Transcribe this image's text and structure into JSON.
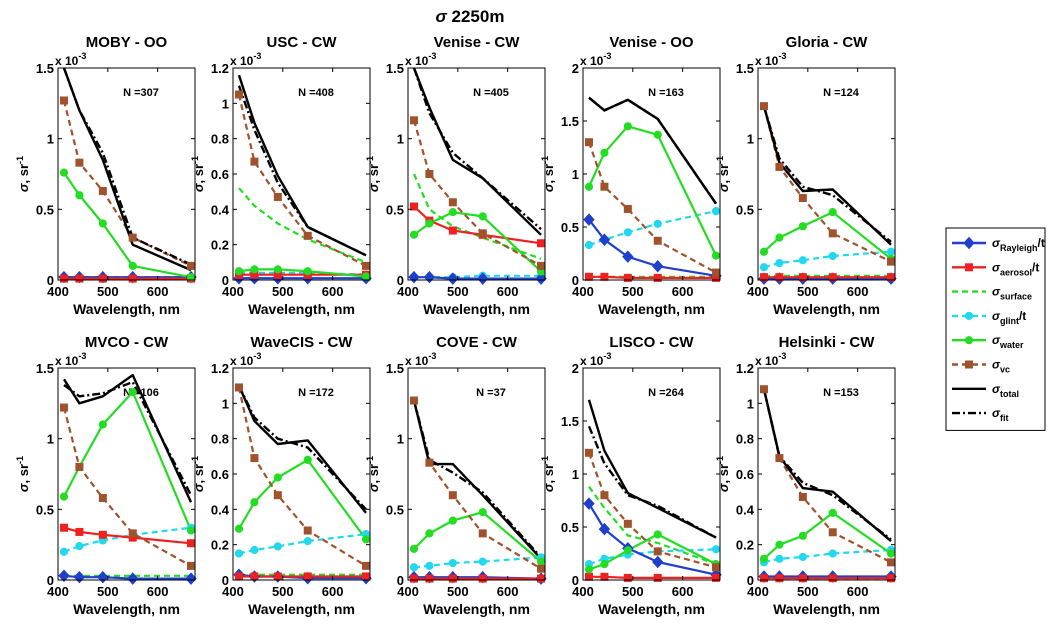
{
  "chart_data": {
    "type": "line",
    "title_sigma": "σ",
    "title_rest": " 2250m",
    "xlabel": "Wavelength, nm",
    "ylabel_sigma": "σ",
    "ylabel_unit": ", sr",
    "ylabel_exp": "-1",
    "xlim": [
      400,
      675
    ],
    "xticks": [
      400,
      500,
      600
    ],
    "x": [
      412,
      443,
      490,
      550,
      667
    ],
    "exponent_base": "x 10",
    "exponent_power": "-3",
    "series_meta": [
      {
        "key": "rayleigh",
        "sym": "σ",
        "sub": "Rayleigh",
        "suffix": "/t",
        "color": "#1f3fcc",
        "dash": "",
        "marker": "diamond"
      },
      {
        "key": "aerosol",
        "sym": "σ",
        "sub": "aerosol",
        "suffix": "/t",
        "color": "#ee2020",
        "dash": "",
        "marker": "square"
      },
      {
        "key": "surface",
        "sym": "σ",
        "sub": "surface",
        "suffix": "",
        "color": "#22dd22",
        "dash": "6,4",
        "marker": "none"
      },
      {
        "key": "glint",
        "sym": "σ",
        "sub": "glint",
        "suffix": "/t",
        "color": "#22d8ee",
        "dash": "6,4",
        "marker": "circle"
      },
      {
        "key": "water",
        "sym": "σ",
        "sub": "water",
        "suffix": "",
        "color": "#22dd22",
        "dash": "",
        "marker": "circle"
      },
      {
        "key": "vc",
        "sym": "σ",
        "sub": "vc",
        "suffix": "",
        "color": "#a0522d",
        "dash": "6,4",
        "marker": "square"
      },
      {
        "key": "total",
        "sym": "σ",
        "sub": "total",
        "suffix": "",
        "color": "#000000",
        "dash": "",
        "marker": "none"
      },
      {
        "key": "fit",
        "sym": "σ",
        "sub": "fit",
        "suffix": "",
        "color": "#000000",
        "dash": "8,3,2,3",
        "marker": "none"
      }
    ],
    "panels": [
      {
        "title": "MOBY - OO",
        "n_label": "N =307",
        "ylim": [
          0,
          1.5
        ],
        "yticks": [
          "0",
          "0.5",
          "1",
          "1.5"
        ],
        "series": {
          "rayleigh": [
            0.02,
            0.02,
            0.02,
            0.02,
            0.02
          ],
          "aerosol": [
            0.01,
            0.01,
            0.01,
            0.01,
            0.01
          ],
          "surface": [
            0.02,
            0.02,
            0.02,
            0.02,
            0.02
          ],
          "glint": [
            0.02,
            0.02,
            0.02,
            0.02,
            0.02
          ],
          "water": [
            0.76,
            0.6,
            0.4,
            0.1,
            0.02
          ],
          "vc": [
            1.27,
            0.83,
            0.63,
            0.3,
            0.1
          ],
          "total": [
            1.5,
            1.2,
            0.85,
            0.25,
            0.07
          ],
          "fit": [
            1.5,
            1.2,
            0.9,
            0.3,
            0.11
          ]
        }
      },
      {
        "title": "USC - CW",
        "n_label": "N =408",
        "ylim": [
          0,
          1.2
        ],
        "yticks": [
          "0",
          "0.2",
          "0.4",
          "0.6",
          "0.8",
          "1",
          "1.2"
        ],
        "series": {
          "rayleigh": [
            0.01,
            0.01,
            0.01,
            0.01,
            0.01
          ],
          "aerosol": [
            0.03,
            0.03,
            0.03,
            0.03,
            0.03
          ],
          "surface": [
            0.52,
            0.42,
            0.32,
            0.23,
            0.1
          ],
          "glint": [
            0.04,
            0.04,
            0.04,
            0.04,
            0.03
          ],
          "water": [
            0.05,
            0.06,
            0.06,
            0.05,
            0.02
          ],
          "vc": [
            1.05,
            0.67,
            0.47,
            0.25,
            0.08
          ],
          "total": [
            1.16,
            0.89,
            0.59,
            0.3,
            0.14
          ],
          "fit": [
            1.1,
            0.85,
            0.55,
            0.3,
            0.14
          ]
        }
      },
      {
        "title": "Venise - CW",
        "n_label": "N =405",
        "ylim": [
          0,
          1.5
        ],
        "yticks": [
          "0",
          "0.5",
          "1",
          "1.5"
        ],
        "series": {
          "rayleigh": [
            0.02,
            0.02,
            0.01,
            0.01,
            0.01
          ],
          "aerosol": [
            0.52,
            0.42,
            0.35,
            0.32,
            0.26
          ],
          "surface": [
            0.75,
            0.5,
            0.38,
            0.3,
            0.15
          ],
          "glint": [
            0.02,
            0.02,
            0.02,
            0.03,
            0.03
          ],
          "water": [
            0.32,
            0.4,
            0.48,
            0.45,
            0.06
          ],
          "vc": [
            1.13,
            0.75,
            0.55,
            0.33,
            0.1
          ],
          "total": [
            1.5,
            1.22,
            0.85,
            0.72,
            0.32
          ],
          "fit": [
            1.5,
            1.18,
            0.9,
            0.72,
            0.36
          ]
        }
      },
      {
        "title": "Venise - OO",
        "n_label": "N =163",
        "ylim": [
          0,
          2
        ],
        "yticks": [
          "0",
          "0.5",
          "1",
          "1.5",
          "2"
        ],
        "series": {
          "rayleigh": [
            0.57,
            0.38,
            0.22,
            0.13,
            0.04
          ],
          "aerosol": [
            0.03,
            0.03,
            0.02,
            0.02,
            0.02
          ],
          "surface": [
            0.03,
            0.03,
            0.03,
            0.03,
            0.03
          ],
          "glint": [
            0.33,
            0.38,
            0.45,
            0.53,
            0.65
          ],
          "water": [
            0.88,
            1.2,
            1.45,
            1.37,
            0.23
          ],
          "vc": [
            1.3,
            0.88,
            0.67,
            0.37,
            0.07
          ],
          "total": [
            1.72,
            1.6,
            1.7,
            1.52,
            0.72
          ],
          "fit": [
            1.72,
            1.6,
            1.7,
            1.52,
            0.72
          ]
        }
      },
      {
        "title": "Gloria - CW",
        "n_label": "N =124",
        "ylim": [
          0,
          1.5
        ],
        "yticks": [
          "0",
          "0.5",
          "1",
          "1.5"
        ],
        "series": {
          "rayleigh": [
            0.01,
            0.01,
            0.01,
            0.01,
            0.01
          ],
          "aerosol": [
            0.02,
            0.02,
            0.02,
            0.02,
            0.02
          ],
          "surface": [
            0.03,
            0.03,
            0.03,
            0.03,
            0.03
          ],
          "glint": [
            0.09,
            0.12,
            0.14,
            0.17,
            0.2
          ],
          "water": [
            0.2,
            0.3,
            0.38,
            0.48,
            0.15
          ],
          "vc": [
            1.23,
            0.8,
            0.58,
            0.33,
            0.13
          ],
          "total": [
            1.23,
            0.83,
            0.63,
            0.64,
            0.25
          ],
          "fit": [
            1.23,
            0.86,
            0.66,
            0.6,
            0.27
          ]
        }
      },
      {
        "title": "MVCO - CW",
        "n_label": "N =106",
        "ylim": [
          0,
          1.5
        ],
        "yticks": [
          "0",
          "0.5",
          "1",
          "1.5"
        ],
        "series": {
          "rayleigh": [
            0.03,
            0.02,
            0.02,
            0.01,
            0.01
          ],
          "aerosol": [
            0.37,
            0.34,
            0.32,
            0.3,
            0.26
          ],
          "surface": [
            0.03,
            0.03,
            0.03,
            0.03,
            0.03
          ],
          "glint": [
            0.2,
            0.24,
            0.28,
            0.32,
            0.37
          ],
          "water": [
            0.59,
            0.8,
            1.1,
            1.33,
            0.35
          ],
          "vc": [
            1.22,
            0.8,
            0.58,
            0.33,
            0.1
          ],
          "total": [
            1.42,
            1.25,
            1.3,
            1.45,
            0.55
          ],
          "fit": [
            1.38,
            1.3,
            1.32,
            1.4,
            0.6
          ]
        }
      },
      {
        "title": "WaveCIS - CW",
        "n_label": "N =172",
        "ylim": [
          0,
          1.2
        ],
        "yticks": [
          "0",
          "0.2",
          "0.4",
          "0.6",
          "0.8",
          "1",
          "1.2"
        ],
        "series": {
          "rayleigh": [
            0.03,
            0.02,
            0.02,
            0.01,
            0.01
          ],
          "aerosol": [
            0.02,
            0.02,
            0.02,
            0.02,
            0.02
          ],
          "surface": [
            0.03,
            0.03,
            0.03,
            0.03,
            0.03
          ],
          "glint": [
            0.15,
            0.17,
            0.19,
            0.22,
            0.26
          ],
          "water": [
            0.29,
            0.44,
            0.58,
            0.68,
            0.23
          ],
          "vc": [
            1.09,
            0.69,
            0.48,
            0.28,
            0.08
          ],
          "total": [
            1.1,
            0.9,
            0.77,
            0.79,
            0.38
          ],
          "fit": [
            1.1,
            0.92,
            0.8,
            0.75,
            0.4
          ]
        }
      },
      {
        "title": "COVE - CW",
        "n_label": "N =37",
        "ylim": [
          0,
          1.5
        ],
        "yticks": [
          "0",
          "0.5",
          "1",
          "1.5"
        ],
        "series": {
          "rayleigh": [
            0.02,
            0.02,
            0.02,
            0.02,
            0.01
          ],
          "aerosol": [
            0.01,
            0.01,
            0.01,
            0.01,
            0.01
          ],
          "surface": [
            0.01,
            0.01,
            0.01,
            0.01,
            0.01
          ],
          "glint": [
            0.09,
            0.1,
            0.12,
            0.13,
            0.16
          ],
          "water": [
            0.22,
            0.33,
            0.42,
            0.48,
            0.13
          ],
          "vc": [
            1.27,
            0.83,
            0.6,
            0.33,
            0.08
          ],
          "total": [
            1.27,
            0.82,
            0.82,
            0.6,
            0.15
          ],
          "fit": [
            1.27,
            0.85,
            0.76,
            0.62,
            0.16
          ]
        }
      },
      {
        "title": "LISCO - CW",
        "n_label": "N =264",
        "ylim": [
          0,
          2
        ],
        "yticks": [
          "0",
          "0.5",
          "1",
          "1.5",
          "2"
        ],
        "series": {
          "rayleigh": [
            0.72,
            0.48,
            0.3,
            0.17,
            0.05
          ],
          "aerosol": [
            0.03,
            0.03,
            0.02,
            0.02,
            0.02
          ],
          "surface": [
            0.88,
            0.68,
            0.42,
            0.35,
            0.15
          ],
          "glint": [
            0.15,
            0.2,
            0.24,
            0.27,
            0.29
          ],
          "water": [
            0.1,
            0.15,
            0.28,
            0.43,
            0.15
          ],
          "vc": [
            1.2,
            0.8,
            0.53,
            0.27,
            0.12
          ],
          "total": [
            1.7,
            1.22,
            0.82,
            0.68,
            0.4
          ],
          "fit": [
            1.45,
            1.1,
            0.8,
            0.7,
            0.4
          ]
        }
      },
      {
        "title": "Helsinki - CW",
        "n_label": "N =153",
        "ylim": [
          0,
          1.2
        ],
        "yticks": [
          "0",
          "0.2",
          "0.4",
          "0.6",
          "0.8",
          "1",
          "1.2"
        ],
        "series": {
          "rayleigh": [
            0.02,
            0.02,
            0.02,
            0.02,
            0.02
          ],
          "aerosol": [
            0.01,
            0.01,
            0.01,
            0.01,
            0.01
          ],
          "surface": [
            0.01,
            0.01,
            0.01,
            0.01,
            0.01
          ],
          "glint": [
            0.1,
            0.12,
            0.13,
            0.15,
            0.17
          ],
          "water": [
            0.12,
            0.2,
            0.25,
            0.38,
            0.15
          ],
          "vc": [
            1.08,
            0.69,
            0.47,
            0.27,
            0.1
          ],
          "total": [
            1.08,
            0.7,
            0.52,
            0.5,
            0.22
          ],
          "fit": [
            1.08,
            0.7,
            0.55,
            0.48,
            0.23
          ]
        }
      }
    ]
  }
}
